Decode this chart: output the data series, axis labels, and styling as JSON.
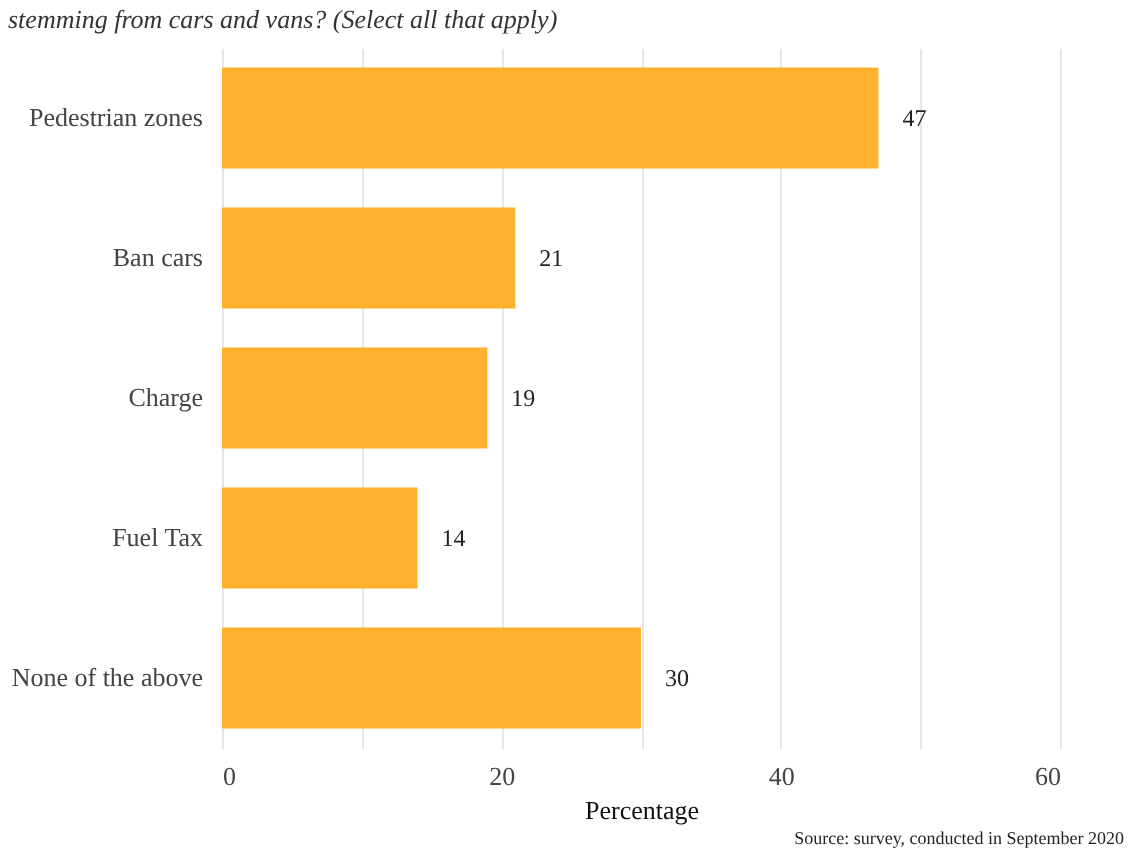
{
  "chart_data": {
    "type": "bar",
    "orientation": "horizontal",
    "subtitle": "stemming from cars and vans? (Select all that apply)",
    "categories": [
      "Pedestrian zones",
      "Ban cars",
      "Charge",
      "Fuel Tax",
      "None of the above"
    ],
    "values": [
      47,
      21,
      19,
      14,
      30
    ],
    "color": "#ffb12f",
    "data_labels": true,
    "xlabel": "Percentage",
    "xlim": [
      0,
      60
    ],
    "xticks": [
      0,
      {
        "value": 10,
        "label": null
      },
      20,
      {
        "value": 30,
        "label": null
      },
      40,
      {
        "value": 50,
        "label": null
      },
      60
    ],
    "grid": "x",
    "annotations": [
      "Source: survey, conducted in September 2020"
    ]
  }
}
